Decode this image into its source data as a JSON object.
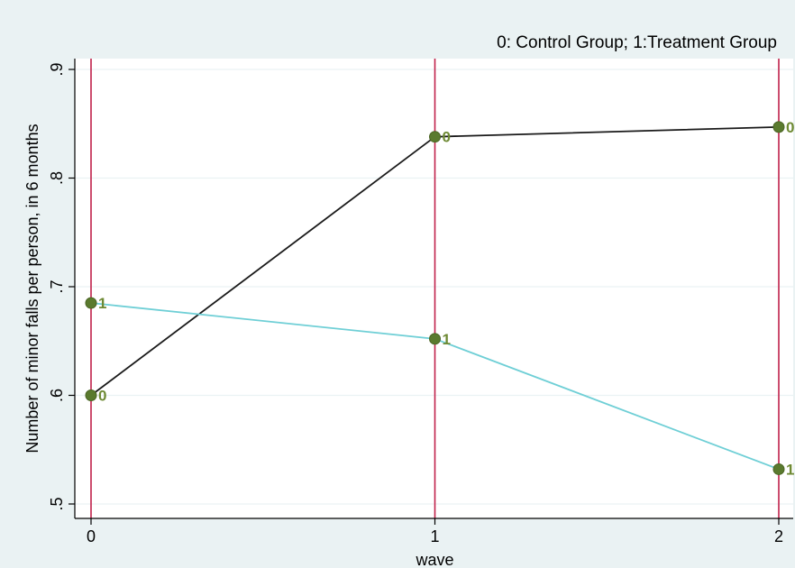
{
  "chart_data": {
    "type": "line",
    "note": "0: Control Group; 1:Treatment Group",
    "xlabel": "wave",
    "ylabel": "Number of minor falls per person, in 6 months",
    "x": [
      0,
      1,
      2
    ],
    "x_tick_labels": [
      "0",
      "1",
      "2"
    ],
    "y_ticks": [
      0.5,
      0.6,
      0.7,
      0.8,
      0.9
    ],
    "y_tick_labels": [
      ".5",
      ".6",
      ".7",
      ".8",
      ".9"
    ],
    "xlim": [
      0,
      2
    ],
    "ylim": [
      0.5,
      0.9
    ],
    "xline_at": [
      0,
      1,
      2
    ],
    "grid": "horizontal",
    "series": [
      {
        "values": [
          0.6,
          0.838,
          0.847
        ],
        "marker_labels": [
          "0",
          "0",
          "0"
        ],
        "line_color": "#1a1a1a"
      },
      {
        "values": [
          0.685,
          0.652,
          0.532
        ],
        "marker_labels": [
          "1",
          "1",
          "1"
        ],
        "line_color": "#6fcfd6"
      }
    ]
  },
  "colors": {
    "outer_background": "#eaf2f3",
    "plot_background": "#ffffff",
    "grid": "#eaf2f3",
    "reference_line": "#c0204a",
    "marker": "#5a7a2e",
    "marker_label": "#6e8a34"
  }
}
